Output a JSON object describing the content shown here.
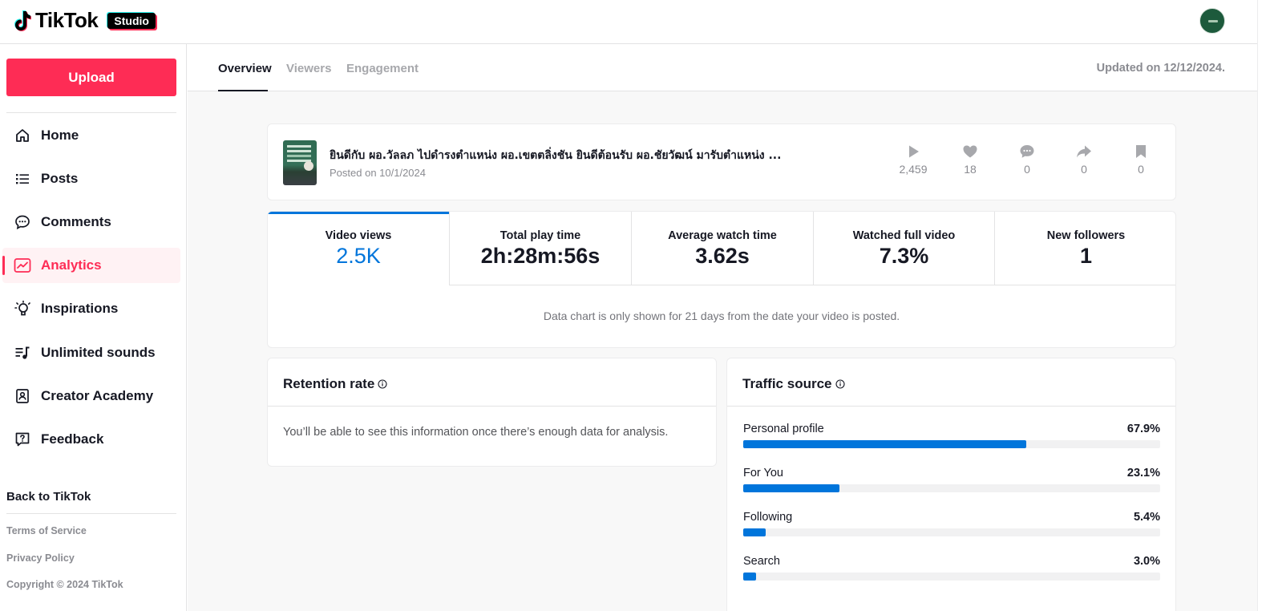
{
  "header": {
    "logo_text": "TikTok",
    "studio_label": "Studio",
    "avatar_icon": "user-avatar"
  },
  "sidebar": {
    "upload_label": "Upload",
    "items": [
      {
        "label": "Home",
        "icon": "home-icon"
      },
      {
        "label": "Posts",
        "icon": "list-icon"
      },
      {
        "label": "Comments",
        "icon": "comment-icon"
      },
      {
        "label": "Analytics",
        "icon": "chart-icon",
        "active": true
      },
      {
        "label": "Inspirations",
        "icon": "lightbulb-icon"
      },
      {
        "label": "Unlimited sounds",
        "icon": "music-list-icon"
      },
      {
        "label": "Creator Academy",
        "icon": "academy-icon"
      },
      {
        "label": "Feedback",
        "icon": "feedback-icon"
      }
    ],
    "back_link": "Back to TikTok",
    "footer": {
      "terms": "Terms of Service",
      "privacy": "Privacy Policy",
      "copyright": "Copyright © 2024 TikTok"
    }
  },
  "tabs": [
    {
      "label": "Overview",
      "active": true
    },
    {
      "label": "Viewers"
    },
    {
      "label": "Engagement"
    }
  ],
  "updated": "Updated on 12/12/2024.",
  "video": {
    "title": "ยินดีกับ ผอ.วัลลภ ไปดำรงตำแหน่ง ผอ.เขตตลิ่งชัน ยินดีต้อนรับ ผอ.ชัยวัฒน์ มารับตำแหน่ง ...",
    "posted": "Posted on 10/1/2024",
    "stats": {
      "plays": "2,459",
      "likes": "18",
      "comments": "0",
      "shares": "0",
      "saves": "0"
    }
  },
  "metrics": [
    {
      "label": "Video views",
      "value": "2.5K",
      "active": true
    },
    {
      "label": "Total play time",
      "value": "2h:28m:56s"
    },
    {
      "label": "Average watch time",
      "value": "3.62s"
    },
    {
      "label": "Watched full video",
      "value": "7.3%"
    },
    {
      "label": "New followers",
      "value": "1"
    }
  ],
  "chart_note": "Data chart is only shown for 21 days from the date your video is posted.",
  "retention": {
    "title": "Retention rate",
    "message": "You’ll be able to see this information once there’s enough data for analysis."
  },
  "traffic": {
    "title": "Traffic source",
    "sources": [
      {
        "name": "Personal profile",
        "pct_label": "67.9%",
        "pct": 67.9
      },
      {
        "name": "For You",
        "pct_label": "23.1%",
        "pct": 23.1
      },
      {
        "name": "Following",
        "pct_label": "5.4%",
        "pct": 5.4
      },
      {
        "name": "Search",
        "pct_label": "3.0%",
        "pct": 3.0
      }
    ]
  },
  "colors": {
    "brand": "#fe2c55",
    "accent_blue": "#0075db"
  }
}
